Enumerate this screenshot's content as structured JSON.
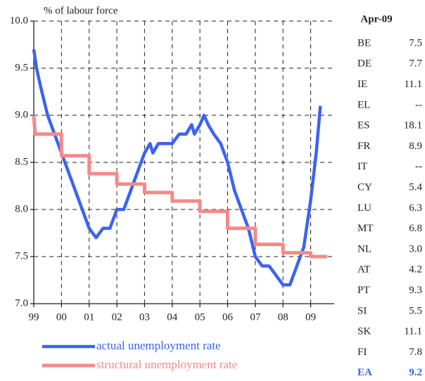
{
  "chart_data": {
    "type": "line",
    "y_label": "% of labour force",
    "xlim": [
      1999,
      2009.85
    ],
    "ylim": [
      7,
      10
    ],
    "xticks": [
      {
        "value": 1999,
        "label": "99"
      },
      {
        "value": 2000,
        "label": "00"
      },
      {
        "value": 2001,
        "label": "01"
      },
      {
        "value": 2002,
        "label": "02"
      },
      {
        "value": 2003,
        "label": "03"
      },
      {
        "value": 2004,
        "label": "04"
      },
      {
        "value": 2005,
        "label": "05"
      },
      {
        "value": 2006,
        "label": "06"
      },
      {
        "value": 2007,
        "label": "07"
      },
      {
        "value": 2008,
        "label": "08"
      },
      {
        "value": 2009,
        "label": "09"
      }
    ],
    "yticks": [
      {
        "value": 7,
        "label": "7.0"
      },
      7.5,
      {
        "value": 8,
        "label": "8.0"
      },
      8.5,
      {
        "value": 9,
        "label": "9.0"
      },
      9.5,
      {
        "value": 10,
        "label": "10.0"
      }
    ],
    "grid": true,
    "series": [
      {
        "name": "actual unemployment rate",
        "color": "#3c63ef",
        "x": [
          1999.0,
          1999.1,
          1999.25,
          1999.5,
          1999.75,
          2000.0,
          2000.25,
          2000.5,
          2000.75,
          2001.0,
          2001.25,
          2001.5,
          2001.75,
          2002.0,
          2002.25,
          2002.5,
          2002.75,
          2003.0,
          2003.2,
          2003.3,
          2003.5,
          2004.0,
          2004.25,
          2004.5,
          2004.7,
          2004.8,
          2005.0,
          2005.15,
          2005.3,
          2005.5,
          2005.75,
          2006.0,
          2006.25,
          2006.5,
          2006.75,
          2007.0,
          2007.25,
          2007.5,
          2007.75,
          2008.0,
          2008.25,
          2008.5,
          2008.75,
          2009.0,
          2009.2,
          2009.35
        ],
        "values": [
          9.7,
          9.5,
          9.3,
          9.0,
          8.8,
          8.6,
          8.4,
          8.2,
          8.0,
          7.8,
          7.7,
          7.8,
          7.8,
          8.0,
          8.0,
          8.2,
          8.4,
          8.6,
          8.7,
          8.6,
          8.7,
          8.7,
          8.8,
          8.8,
          8.9,
          8.8,
          8.9,
          9.0,
          8.9,
          8.8,
          8.7,
          8.5,
          8.2,
          8.0,
          7.8,
          7.5,
          7.4,
          7.4,
          7.3,
          7.2,
          7.2,
          7.4,
          7.6,
          8.1,
          8.6,
          9.1
        ]
      },
      {
        "name": "structural unemployment rate",
        "color": "#f38a8a",
        "x": [
          1999.0,
          1999.05,
          2000.0,
          2000.0,
          2001.0,
          2001.0,
          2002.0,
          2002.0,
          2003.0,
          2003.0,
          2004.0,
          2004.0,
          2005.0,
          2005.0,
          2006.0,
          2006.0,
          2007.0,
          2007.0,
          2008.0,
          2008.0,
          2009.0,
          2009.0,
          2009.6
        ],
        "values": [
          9.0,
          8.8,
          8.8,
          8.57,
          8.57,
          8.38,
          8.38,
          8.27,
          8.27,
          8.18,
          8.18,
          8.09,
          8.09,
          7.98,
          7.98,
          7.8,
          7.8,
          7.63,
          7.63,
          7.54,
          7.54,
          7.5,
          7.5
        ]
      }
    ]
  },
  "table": {
    "header": "Apr-09",
    "rows": [
      [
        "BE",
        "7.5"
      ],
      [
        "DE",
        "7.7"
      ],
      [
        "IE",
        "11.1"
      ],
      [
        "EL",
        "--"
      ],
      [
        "ES",
        "18.1"
      ],
      [
        "FR",
        "8.9"
      ],
      [
        "IT",
        "--"
      ],
      [
        "CY",
        "5.4"
      ],
      [
        "LU",
        "6.3"
      ],
      [
        "MT",
        "6.8"
      ],
      [
        "NL",
        "3.0"
      ],
      [
        "AT",
        "4.2"
      ],
      [
        "PT",
        "9.3"
      ],
      [
        "SI",
        "5.5"
      ],
      [
        "SK",
        "11.1"
      ],
      [
        "FI",
        "7.8"
      ],
      [
        "EA",
        "9.2"
      ]
    ]
  }
}
